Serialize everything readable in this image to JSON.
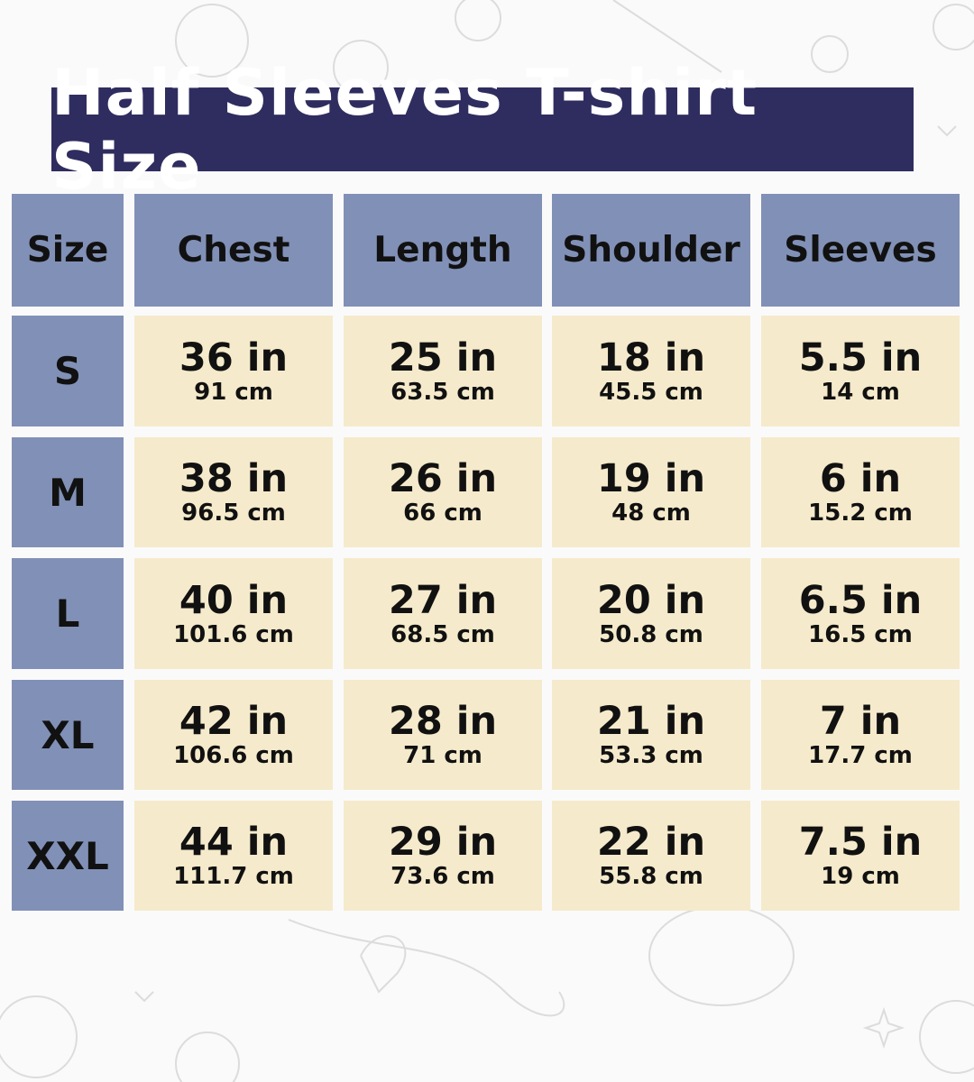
{
  "title": "Half Sleeves T-shirt Size",
  "headers": [
    "Size",
    "Chest",
    "Length",
    "Shoulder",
    "Sleeves"
  ],
  "rows": [
    {
      "size": "S",
      "values": [
        {
          "in": "36 in",
          "cm": "91 cm"
        },
        {
          "in": "25 in",
          "cm": "63.5 cm"
        },
        {
          "in": "18 in",
          "cm": "45.5 cm"
        },
        {
          "in": "5.5 in",
          "cm": "14 cm"
        }
      ]
    },
    {
      "size": "M",
      "values": [
        {
          "in": "38 in",
          "cm": "96.5 cm"
        },
        {
          "in": "26 in",
          "cm": "66 cm"
        },
        {
          "in": "19 in",
          "cm": "48 cm"
        },
        {
          "in": "6 in",
          "cm": "15.2 cm"
        }
      ]
    },
    {
      "size": "L",
      "values": [
        {
          "in": "40 in",
          "cm": "101.6 cm"
        },
        {
          "in": "27 in",
          "cm": "68.5 cm"
        },
        {
          "in": "20 in",
          "cm": "50.8 cm"
        },
        {
          "in": "6.5 in",
          "cm": "16.5 cm"
        }
      ]
    },
    {
      "size": "XL",
      "values": [
        {
          "in": "42 in",
          "cm": "106.6 cm"
        },
        {
          "in": "28 in",
          "cm": "71 cm"
        },
        {
          "in": "21 in",
          "cm": "53.3 cm"
        },
        {
          "in": "7 in",
          "cm": "17.7 cm"
        }
      ]
    },
    {
      "size": "XXL",
      "values": [
        {
          "in": "44 in",
          "cm": "111.7 cm"
        },
        {
          "in": "29 in",
          "cm": "73.6 cm"
        },
        {
          "in": "22 in",
          "cm": "55.8 cm"
        },
        {
          "in": "7.5 in",
          "cm": "19 cm"
        }
      ]
    }
  ],
  "colors": {
    "title_bg": "#2f2d5f",
    "header_bg": "#8190b6",
    "value_bg": "#f5eacb"
  }
}
